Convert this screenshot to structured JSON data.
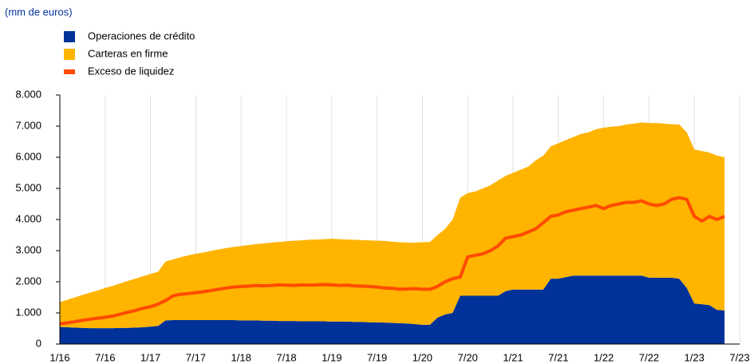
{
  "chart_data": {
    "type": "stacked_area_line",
    "subtitle": "(mm de euros)",
    "categories": [
      "1/16",
      null,
      null,
      null,
      null,
      null,
      "7/16",
      null,
      null,
      null,
      null,
      null,
      "1/17",
      null,
      null,
      null,
      null,
      null,
      "7/17",
      null,
      null,
      null,
      null,
      null,
      "1/18",
      null,
      null,
      null,
      null,
      null,
      "7/18",
      null,
      null,
      null,
      null,
      null,
      "1/19",
      null,
      null,
      null,
      null,
      null,
      "7/19",
      null,
      null,
      null,
      null,
      null,
      "1/20",
      null,
      null,
      null,
      null,
      null,
      "7/20",
      null,
      null,
      null,
      null,
      null,
      "1/21",
      null,
      null,
      null,
      null,
      null,
      "7/21",
      null,
      null,
      null,
      null,
      null,
      "1/22",
      null,
      null,
      null,
      null,
      null,
      "7/22",
      null,
      null,
      null,
      null,
      null,
      "1/23",
      null,
      null,
      null,
      null,
      null,
      "7/23"
    ],
    "series": [
      {
        "name": "Operaciones de crédito",
        "kind": "area",
        "color": "#003299",
        "values": [
          550,
          540,
          530,
          520,
          510,
          510,
          510,
          510,
          520,
          520,
          530,
          540,
          560,
          580,
          760,
          770,
          770,
          770,
          770,
          770,
          770,
          770,
          770,
          770,
          760,
          760,
          760,
          750,
          750,
          740,
          740,
          740,
          730,
          730,
          730,
          730,
          720,
          720,
          720,
          710,
          710,
          700,
          700,
          690,
          680,
          670,
          660,
          640,
          620,
          620,
          850,
          950,
          1000,
          1550,
          1550,
          1550,
          1550,
          1550,
          1550,
          1700,
          1750,
          1750,
          1750,
          1750,
          1750,
          2100,
          2100,
          2150,
          2200,
          2200,
          2200,
          2200,
          2200,
          2200,
          2200,
          2200,
          2200,
          2200,
          2130,
          2130,
          2130,
          2130,
          2100,
          1800,
          1300,
          1280,
          1250,
          1100,
          1080,
          null,
          null
        ]
      },
      {
        "name": "Carteras en firme",
        "kind": "area",
        "color": "#ffb400",
        "values": [
          800,
          880,
          970,
          1060,
          1140,
          1210,
          1290,
          1360,
          1430,
          1510,
          1570,
          1640,
          1690,
          1740,
          1890,
          1950,
          2020,
          2080,
          2130,
          2170,
          2220,
          2270,
          2310,
          2350,
          2390,
          2420,
          2450,
          2480,
          2510,
          2540,
          2560,
          2580,
          2600,
          2620,
          2630,
          2640,
          2660,
          2650,
          2640,
          2640,
          2630,
          2630,
          2620,
          2620,
          2610,
          2600,
          2600,
          2620,
          2650,
          2660,
          2650,
          2750,
          3000,
          3150,
          3300,
          3350,
          3450,
          3550,
          3700,
          3700,
          3750,
          3850,
          3950,
          4150,
          4300,
          4250,
          4350,
          4400,
          4450,
          4550,
          4600,
          4700,
          4750,
          4780,
          4800,
          4850,
          4880,
          4920,
          4970,
          4970,
          4950,
          4930,
          4950,
          5000,
          4950,
          4920,
          4900,
          4950,
          4920,
          null,
          null
        ]
      },
      {
        "name": "Exceso de liquidez",
        "kind": "line",
        "color": "#ff4b00",
        "values": [
          650,
          680,
          720,
          760,
          800,
          830,
          860,
          900,
          960,
          1020,
          1080,
          1150,
          1200,
          1280,
          1400,
          1550,
          1600,
          1620,
          1650,
          1680,
          1720,
          1760,
          1800,
          1830,
          1850,
          1860,
          1880,
          1870,
          1880,
          1900,
          1890,
          1880,
          1900,
          1890,
          1900,
          1910,
          1900,
          1880,
          1890,
          1870,
          1860,
          1850,
          1830,
          1800,
          1790,
          1760,
          1770,
          1780,
          1760,
          1760,
          1850,
          2000,
          2100,
          2150,
          2800,
          2850,
          2900,
          3000,
          3150,
          3400,
          3450,
          3500,
          3600,
          3700,
          3900,
          4100,
          4150,
          4250,
          4300,
          4350,
          4400,
          4450,
          4350,
          4450,
          4500,
          4550,
          4550,
          4600,
          4500,
          4450,
          4500,
          4650,
          4700,
          4650,
          4100,
          3950,
          4100,
          4000,
          4100,
          null,
          null
        ]
      }
    ],
    "ylim": [
      0,
      8000
    ],
    "yticks": [
      0,
      {
        "value": 1000,
        "label": "1.000"
      },
      {
        "value": 2000,
        "label": "2.000"
      },
      {
        "value": 3000,
        "label": "3.000"
      },
      {
        "value": 4000,
        "label": "4.000"
      },
      {
        "value": 5000,
        "label": "5.000"
      },
      {
        "value": 6000,
        "label": "6.000"
      },
      {
        "value": 7000,
        "label": "7.000"
      },
      {
        "value": 8000,
        "label": "8.000"
      }
    ],
    "grid": true
  }
}
